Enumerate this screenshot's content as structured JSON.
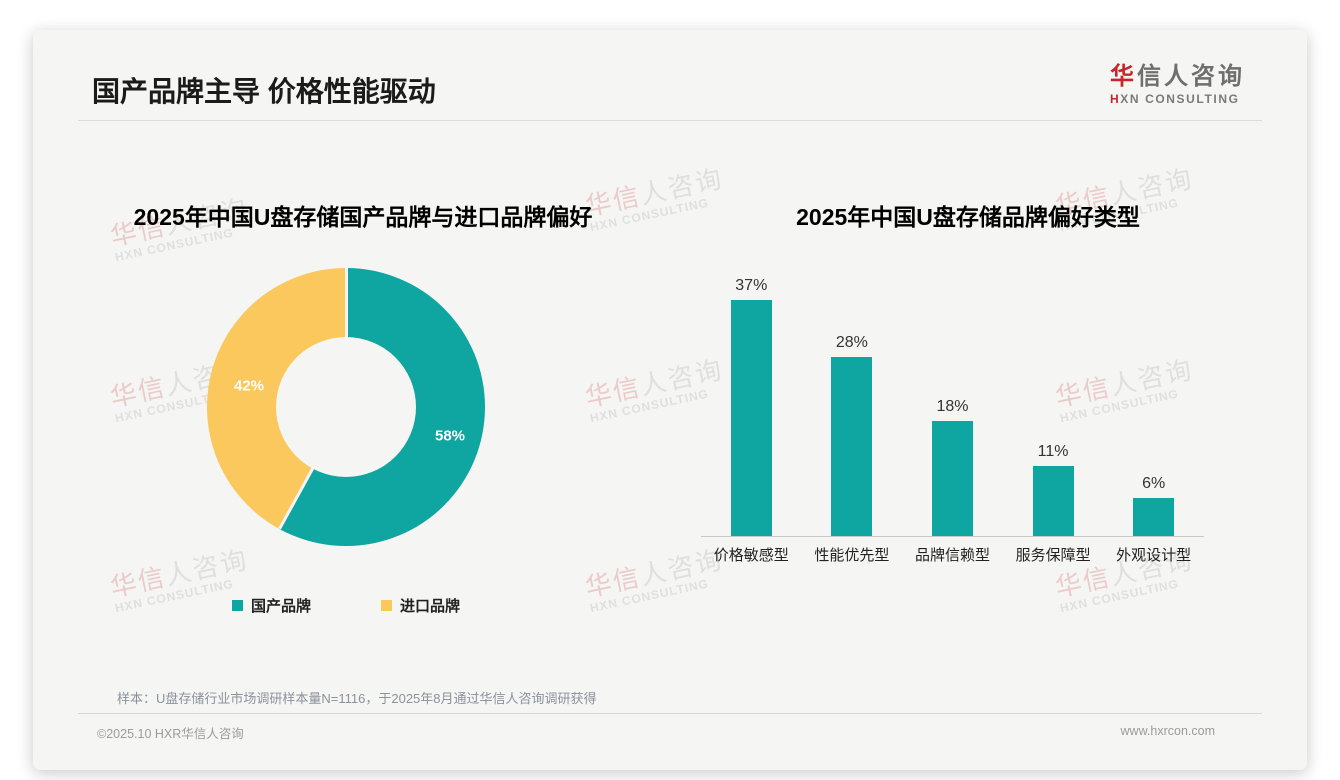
{
  "page": {
    "title": "国产品牌主导 价格性能驱动",
    "footer_note": "样本：U盘存储行业市场调研样本量N=1116，于2025年8月通过华信人咨询调研获得",
    "copyright": "©2025.10 HXR华信人咨询",
    "website": "www.hxrcon.com"
  },
  "logo": {
    "zh_accent": "华",
    "zh_rest": "信人咨询",
    "en_accent": "H",
    "en_rest": "XN CONSULTING"
  },
  "watermark": {
    "zh_accent": "华信",
    "zh_rest": "人咨询",
    "en": "HXN CONSULTING"
  },
  "colors": {
    "teal": "#0fa5a0",
    "yellow": "#fac85c",
    "logo_red": "#c3272b"
  },
  "chart_data": [
    {
      "type": "pie",
      "donut": true,
      "title": "2025年中国U盘存储国产品牌与进口品牌偏好",
      "start_angle_deg": 0,
      "direction": "clockwise",
      "slices": [
        {
          "label": "国产品牌",
          "value": 58,
          "data_label": "58%",
          "color": "#0fa5a0"
        },
        {
          "label": "进口品牌",
          "value": 42,
          "data_label": "42%",
          "color": "#fac85c"
        }
      ],
      "legend_position": "bottom"
    },
    {
      "type": "bar",
      "title": "2025年中国U盘存储品牌偏好类型",
      "categories": [
        "价格敏感型",
        "性能优先型",
        "品牌信赖型",
        "服务保障型",
        "外观设计型"
      ],
      "values": [
        37,
        28,
        18,
        11,
        6
      ],
      "value_labels": [
        "37%",
        "28%",
        "18%",
        "11%",
        "6%"
      ],
      "bar_color": "#0fa5a0",
      "ylim": [
        0,
        40
      ],
      "grid": false,
      "axis_line": "bottom"
    }
  ]
}
